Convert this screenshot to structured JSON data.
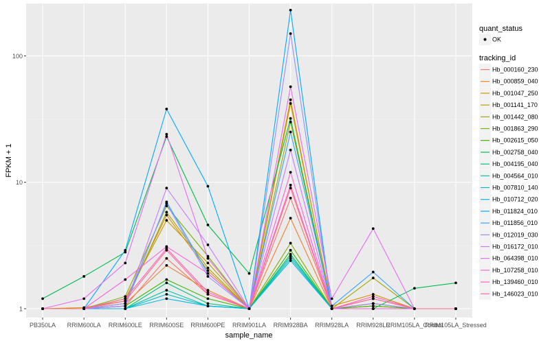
{
  "chart_data": {
    "type": "line",
    "x_label": "sample_name",
    "y_label": "FPKM + 1",
    "y_scale": "log10",
    "y_range": [
      0.85,
      260
    ],
    "y_ticks": [
      1,
      10,
      100
    ],
    "y_tick_labels": [
      "1",
      "10",
      "100"
    ],
    "grid": "on",
    "legend_placement": "right",
    "categories": [
      "PB350LA",
      "RRIM600LA",
      "RRIM600LE",
      "RRIM600SE",
      "RRIM600PE",
      "RRIM901LA",
      "RRIM928BA",
      "RRIM928LA",
      "RRIM928LE",
      "RRIM105LA_Control",
      "RRIM105LA_Stressed"
    ],
    "legend_shape": {
      "title": "quant_status",
      "entries": [
        "OK"
      ]
    },
    "legend_color": {
      "title": "tracking_id"
    },
    "series": [
      {
        "name": "Hb_000160_230",
        "color": "#F8766D",
        "values": [
          1.0,
          1.0,
          1.05,
          2.5,
          1.3,
          1.0,
          7.5,
          1.0,
          1.1,
          1.0,
          1.0
        ]
      },
      {
        "name": "Hb_000859_040",
        "color": "#EA8331",
        "values": [
          1.0,
          1.0,
          1.1,
          2.2,
          1.4,
          1.0,
          5.2,
          1.0,
          1.05,
          1.0,
          1.0
        ]
      },
      {
        "name": "Hb_001047_250",
        "color": "#D89000",
        "values": [
          1.0,
          1.02,
          1.15,
          5.5,
          2.0,
          1.0,
          42,
          1.05,
          1.3,
          1.0,
          1.0
        ]
      },
      {
        "name": "Hb_001141_170",
        "color": "#C09B00",
        "values": [
          1.0,
          1.0,
          1.2,
          5.0,
          2.3,
          1.0,
          45,
          1.0,
          1.1,
          1.0,
          1.0
        ]
      },
      {
        "name": "Hb_001442_080",
        "color": "#A3A500",
        "values": [
          1.0,
          1.0,
          1.1,
          5.8,
          2.1,
          1.0,
          30,
          1.0,
          1.75,
          1.0,
          1.0
        ]
      },
      {
        "name": "Hb_001863_290",
        "color": "#7CAE00",
        "values": [
          1.0,
          1.0,
          1.25,
          6.5,
          2.6,
          1.0,
          3.3,
          1.0,
          1.2,
          1.0,
          1.0
        ]
      },
      {
        "name": "Hb_002615_050",
        "color": "#39B600",
        "values": [
          1.0,
          1.0,
          1.05,
          1.7,
          1.2,
          1.0,
          2.9,
          1.0,
          1.05,
          1.0,
          1.0
        ]
      },
      {
        "name": "Hb_002758_040",
        "color": "#00BB4E",
        "values": [
          1.2,
          1.8,
          2.8,
          23,
          4.6,
          1.9,
          32,
          1.0,
          1.0,
          1.45,
          1.6
        ]
      },
      {
        "name": "Hb_004195_040",
        "color": "#00BF7D",
        "values": [
          1.0,
          1.0,
          1.0,
          1.6,
          1.1,
          1.0,
          2.7,
          1.0,
          1.0,
          1.0,
          1.0
        ]
      },
      {
        "name": "Hb_004564_010",
        "color": "#00C1A3",
        "values": [
          1.0,
          1.0,
          1.0,
          1.4,
          1.05,
          1.0,
          2.6,
          1.0,
          1.0,
          1.0,
          1.0
        ]
      },
      {
        "name": "Hb_007810_140",
        "color": "#00BFC4",
        "values": [
          1.0,
          1.0,
          1.0,
          1.3,
          1.05,
          1.0,
          2.5,
          1.0,
          1.0,
          1.0,
          1.0
        ]
      },
      {
        "name": "Hb_010712_020",
        "color": "#00B8E7",
        "values": [
          1.0,
          1.0,
          1.0,
          1.2,
          1.05,
          1.0,
          2.4,
          1.0,
          1.0,
          1.0,
          1.0
        ]
      },
      {
        "name": "Hb_011824_010",
        "color": "#00A9FF",
        "values": [
          1.0,
          1.0,
          2.9,
          38,
          9.3,
          1.0,
          230,
          1.0,
          1.0,
          1.0,
          1.0
        ]
      },
      {
        "name": "Hb_011856_010",
        "color": "#35A2FF",
        "values": [
          1.0,
          1.0,
          1.05,
          7.0,
          1.9,
          1.0,
          25,
          1.05,
          1.95,
          1.0,
          1.0
        ]
      },
      {
        "name": "Hb_012019_030",
        "color": "#9590FF",
        "values": [
          1.0,
          1.0,
          1.1,
          6.8,
          1.8,
          1.0,
          150,
          1.0,
          1.1,
          1.0,
          1.0
        ]
      },
      {
        "name": "Hb_016172_010",
        "color": "#C77CFF",
        "values": [
          1.0,
          1.0,
          1.05,
          9.0,
          3.2,
          1.0,
          18,
          1.0,
          1.2,
          1.0,
          1.0
        ]
      },
      {
        "name": "Hb_064398_010",
        "color": "#E76BF3",
        "values": [
          1.0,
          1.2,
          2.3,
          24,
          2.5,
          1.0,
          57,
          1.2,
          4.3,
          1.0,
          1.0
        ]
      },
      {
        "name": "Hb_107258_010",
        "color": "#FA62DB",
        "values": [
          1.0,
          1.0,
          1.7,
          3.1,
          1.9,
          1.0,
          12,
          1.0,
          1.0,
          1.0,
          1.0
        ]
      },
      {
        "name": "Hb_139460_010",
        "color": "#FF62BC",
        "values": [
          1.0,
          1.0,
          1.2,
          3.0,
          1.35,
          1.0,
          9.5,
          1.0,
          1.25,
          1.0,
          1.0
        ]
      },
      {
        "name": "Hb_146023_010",
        "color": "#FF6C90",
        "values": [
          1.0,
          1.0,
          1.15,
          2.9,
          1.3,
          1.0,
          9.0,
          1.0,
          1.2,
          1.0,
          1.0
        ]
      }
    ]
  }
}
